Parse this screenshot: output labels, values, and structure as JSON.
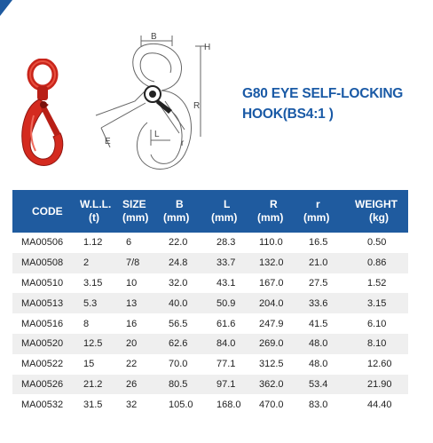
{
  "title": {
    "line1": "G80 EYE SELF-LOCKING",
    "line2": "HOOK(BS4:1 )"
  },
  "drawing_labels": {
    "B": "B",
    "R": "R",
    "r": "r",
    "L": "L",
    "E": "E",
    "H": "H"
  },
  "table": {
    "headers": [
      {
        "line1": "CODE",
        "line2": ""
      },
      {
        "line1": "W.L.L.",
        "line2": "(t)"
      },
      {
        "line1": "SIZE",
        "line2": "(mm)"
      },
      {
        "line1": "B",
        "line2": "(mm)"
      },
      {
        "line1": "L",
        "line2": "(mm)"
      },
      {
        "line1": "R",
        "line2": "(mm)"
      },
      {
        "line1": "r",
        "line2": "(mm)"
      },
      {
        "line1": "WEIGHT",
        "line2": "(kg)"
      }
    ],
    "rows": [
      [
        "MA00506",
        "1.12",
        "6",
        "22.0",
        "28.3",
        "110.0",
        "16.5",
        "0.50"
      ],
      [
        "MA00508",
        "2",
        "7/8",
        "24.8",
        "33.7",
        "132.0",
        "21.0",
        "0.86"
      ],
      [
        "MA00510",
        "3.15",
        "10",
        "32.0",
        "43.1",
        "167.0",
        "27.5",
        "1.52"
      ],
      [
        "MA00513",
        "5.3",
        "13",
        "40.0",
        "50.9",
        "204.0",
        "33.6",
        "3.15"
      ],
      [
        "MA00516",
        "8",
        "16",
        "56.5",
        "61.6",
        "247.9",
        "41.5",
        "6.10"
      ],
      [
        "MA00520",
        "12.5",
        "20",
        "62.6",
        "84.0",
        "269.0",
        "48.0",
        "8.10"
      ],
      [
        "MA00522",
        "15",
        "22",
        "70.0",
        "77.1",
        "312.5",
        "48.0",
        "12.60"
      ],
      [
        "MA00526",
        "21.2",
        "26",
        "80.5",
        "97.1",
        "362.0",
        "53.4",
        "21.90"
      ],
      [
        "MA00532",
        "31.5",
        "32",
        "105.0",
        "168.0",
        "470.0",
        "83.0",
        "44.40"
      ]
    ]
  },
  "colors": {
    "header_bg": "#1f5b9f",
    "title_blue": "#1a5aa6",
    "hook_red": "#d42a1f",
    "row_alt": "#efefef"
  }
}
